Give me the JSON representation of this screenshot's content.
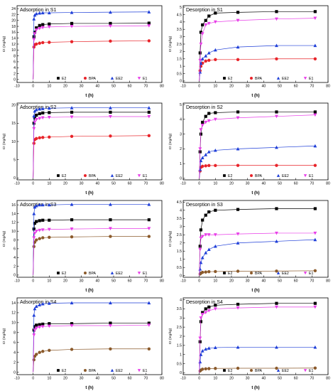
{
  "colors": {
    "E2": "#000000",
    "BPA_S1": "#e8242a",
    "BPA": "#8b5a2b",
    "EE2": "#1f3fd8",
    "E1": "#e83ee8"
  },
  "legend": [
    {
      "key": "E2",
      "label": "E2",
      "marker": "square"
    },
    {
      "key": "BPA",
      "label": "BPA",
      "marker": "circle"
    },
    {
      "key": "EE2",
      "label": "EE2",
      "marker": "triangle-up"
    },
    {
      "key": "E1",
      "label": "E1",
      "marker": "triangle-down"
    }
  ],
  "chart_data": [
    {
      "type": "scatter",
      "title": "Adsorption in S1",
      "xlabel": "t (h)",
      "ylabel": "Ct (mg/kg)",
      "xlim": [
        -10,
        80
      ],
      "ylim": [
        -1,
        25
      ],
      "xticks": [
        -10,
        0,
        10,
        20,
        30,
        40,
        50,
        60,
        70,
        80
      ],
      "yticks": [
        0,
        2,
        4,
        6,
        8,
        10,
        12,
        14,
        16,
        18,
        20,
        22,
        24
      ],
      "bpa_color": "#e8242a",
      "x": [
        0,
        0.5,
        1,
        2,
        4,
        6,
        10,
        24,
        48,
        72
      ],
      "series": [
        {
          "key": "E2",
          "values": [
            0,
            14.5,
            16.0,
            17.5,
            18.3,
            18.6,
            18.8,
            19.0,
            19.0,
            19.1
          ]
        },
        {
          "key": "BPA",
          "values": [
            0,
            11.0,
            11.8,
            12.0,
            12.3,
            12.5,
            12.6,
            12.8,
            13.0,
            13.1
          ]
        },
        {
          "key": "EE2",
          "values": [
            0,
            20.5,
            21.8,
            22.3,
            22.5,
            22.6,
            22.6,
            22.7,
            22.8,
            22.9
          ]
        },
        {
          "key": "E1",
          "values": [
            0,
            13.5,
            15.5,
            16.8,
            17.3,
            17.6,
            17.8,
            18.0,
            18.1,
            18.2
          ]
        }
      ]
    },
    {
      "type": "scatter",
      "title": "Desorption in S1",
      "xlabel": "t (h)",
      "ylabel": "Ct (mg/kg)",
      "xlim": [
        -10,
        80
      ],
      "ylim": [
        -0.1,
        5.1
      ],
      "xticks": [
        -10,
        0,
        10,
        20,
        30,
        40,
        50,
        60,
        70,
        80
      ],
      "yticks": [
        0,
        0.5,
        1,
        1.5,
        2,
        2.5,
        3,
        3.5,
        4,
        4.5,
        5
      ],
      "bpa_color": "#e8242a",
      "x": [
        0,
        0.5,
        1,
        2,
        4,
        6,
        10,
        24,
        48,
        72
      ],
      "series": [
        {
          "key": "E2",
          "values": [
            0,
            1.9,
            3.3,
            3.8,
            4.1,
            4.4,
            4.6,
            4.65,
            4.7,
            4.7
          ]
        },
        {
          "key": "BPA",
          "values": [
            0,
            0.7,
            1.0,
            1.2,
            1.35,
            1.4,
            1.45,
            1.45,
            1.5,
            1.5
          ]
        },
        {
          "key": "EE2",
          "values": [
            0,
            0.6,
            1.2,
            1.5,
            1.7,
            1.9,
            2.1,
            2.3,
            2.4,
            2.4
          ]
        },
        {
          "key": "E1",
          "values": [
            0,
            1.4,
            2.5,
            3.2,
            3.8,
            3.9,
            4.0,
            4.1,
            4.2,
            4.25
          ]
        }
      ]
    },
    {
      "type": "scatter",
      "title": "Adsorption in S2",
      "xlabel": "t (h)",
      "ylabel": "Ct (mg/kg)",
      "xlim": [
        -10,
        80
      ],
      "ylim": [
        -0.5,
        20.5
      ],
      "xticks": [
        -10,
        0,
        10,
        20,
        30,
        40,
        50,
        60,
        70,
        80
      ],
      "yticks": [
        0,
        5,
        10,
        15,
        20
      ],
      "bpa_color": "#e8242a",
      "x": [
        0,
        0.5,
        1,
        2,
        4,
        6,
        10,
        24,
        48,
        72
      ],
      "series": [
        {
          "key": "E2",
          "values": [
            0,
            15.0,
            16.5,
            17.2,
            17.6,
            17.8,
            17.9,
            18.0,
            18.0,
            18.0
          ]
        },
        {
          "key": "BPA",
          "values": [
            0,
            9.5,
            10.5,
            10.8,
            11.0,
            11.1,
            11.2,
            11.4,
            11.5,
            11.6
          ]
        },
        {
          "key": "EE2",
          "values": [
            0,
            17.0,
            18.3,
            18.7,
            18.9,
            19.0,
            19.1,
            19.2,
            19.2,
            19.2
          ]
        },
        {
          "key": "E1",
          "values": [
            0,
            13.5,
            15.3,
            16.0,
            16.3,
            16.5,
            16.6,
            16.7,
            16.8,
            16.8
          ]
        }
      ]
    },
    {
      "type": "scatter",
      "title": "Desorption in S2",
      "xlabel": "t (h)",
      "ylabel": "Ct (mg/kg)",
      "xlim": [
        -10,
        80
      ],
      "ylim": [
        -0.1,
        5.1
      ],
      "xticks": [
        -10,
        0,
        10,
        20,
        30,
        40,
        50,
        60,
        70,
        80
      ],
      "yticks": [
        0,
        1,
        2,
        3,
        4,
        5
      ],
      "bpa_color": "#e8242a",
      "x": [
        0,
        0.5,
        1,
        2,
        4,
        6,
        10,
        24,
        48,
        72
      ],
      "series": [
        {
          "key": "E2",
          "values": [
            0,
            1.8,
            3.0,
            3.8,
            4.2,
            4.4,
            4.45,
            4.5,
            4.5,
            4.5
          ]
        },
        {
          "key": "BPA",
          "values": [
            0,
            0.5,
            0.75,
            0.82,
            0.85,
            0.87,
            0.87,
            0.88,
            0.88,
            0.88
          ]
        },
        {
          "key": "EE2",
          "values": [
            0,
            0.6,
            1.2,
            1.4,
            1.6,
            1.8,
            1.9,
            2.0,
            2.1,
            2.2
          ]
        },
        {
          "key": "E1",
          "values": [
            0,
            2.0,
            3.3,
            3.6,
            3.8,
            3.9,
            4.0,
            4.1,
            4.2,
            4.3
          ]
        }
      ]
    },
    {
      "type": "scatter",
      "title": "Adsorption in S3",
      "xlabel": "t (h)",
      "ylabel": "Ct (mg/kg)",
      "xlim": [
        -10,
        80
      ],
      "ylim": [
        -0.5,
        17
      ],
      "xticks": [
        -10,
        0,
        10,
        20,
        30,
        40,
        50,
        60,
        70,
        80
      ],
      "yticks": [
        0,
        2,
        4,
        6,
        8,
        10,
        12,
        14,
        16
      ],
      "bpa_color": "#8b5a2b",
      "x": [
        0,
        0.5,
        1,
        2,
        4,
        6,
        10,
        24,
        48,
        72
      ],
      "series": [
        {
          "key": "E2",
          "values": [
            0,
            10.5,
            11.8,
            12.2,
            12.4,
            12.5,
            12.5,
            12.6,
            12.6,
            12.6
          ]
        },
        {
          "key": "BPA",
          "values": [
            0,
            6.5,
            7.5,
            8.0,
            8.3,
            8.5,
            8.6,
            8.7,
            8.8,
            8.8
          ]
        },
        {
          "key": "EE2",
          "values": [
            0,
            14.0,
            15.5,
            15.8,
            16.0,
            16.0,
            16.0,
            16.1,
            16.1,
            16.1
          ]
        },
        {
          "key": "E1",
          "values": [
            0,
            8.5,
            9.5,
            10.0,
            10.2,
            10.3,
            10.4,
            10.5,
            10.6,
            10.6
          ]
        }
      ]
    },
    {
      "type": "scatter",
      "title": "Desorption in S3",
      "xlabel": "t (h)",
      "ylabel": "Ct (mg/kg)",
      "xlim": [
        -10,
        80
      ],
      "ylim": [
        -0.1,
        4.6
      ],
      "xticks": [
        -10,
        0,
        10,
        20,
        30,
        40,
        50,
        60,
        70,
        80
      ],
      "yticks": [
        0,
        0.5,
        1,
        1.5,
        2,
        2.5,
        3,
        3.5,
        4,
        4.5
      ],
      "bpa_color": "#8b5a2b",
      "x": [
        0,
        0.5,
        1,
        2,
        4,
        6,
        10,
        24,
        48,
        72
      ],
      "series": [
        {
          "key": "E2",
          "values": [
            0,
            1.8,
            2.8,
            3.4,
            3.7,
            3.9,
            4.0,
            4.05,
            4.1,
            4.1
          ]
        },
        {
          "key": "BPA",
          "values": [
            0,
            0.1,
            0.15,
            0.2,
            0.22,
            0.24,
            0.25,
            0.27,
            0.28,
            0.3
          ]
        },
        {
          "key": "EE2",
          "values": [
            0,
            0.4,
            0.8,
            1.1,
            1.4,
            1.6,
            1.8,
            2.0,
            2.1,
            2.2
          ]
        },
        {
          "key": "E1",
          "values": [
            0,
            1.6,
            2.3,
            2.4,
            2.5,
            2.5,
            2.5,
            2.55,
            2.6,
            2.6
          ]
        }
      ]
    },
    {
      "type": "scatter",
      "title": "Adsorption in S4",
      "xlabel": "t (h)",
      "ylabel": "Ct (mg/kg)",
      "xlim": [
        -10,
        80
      ],
      "ylim": [
        -0.5,
        15
      ],
      "xticks": [
        -10,
        0,
        10,
        20,
        30,
        40,
        50,
        60,
        70,
        80
      ],
      "yticks": [
        0,
        2,
        4,
        6,
        8,
        10,
        12,
        14
      ],
      "bpa_color": "#8b5a2b",
      "x": [
        0,
        0.5,
        1,
        2,
        4,
        6,
        10,
        24,
        48,
        72
      ],
      "series": [
        {
          "key": "E2",
          "values": [
            0,
            8.5,
            9.2,
            9.5,
            9.6,
            9.7,
            9.8,
            9.8,
            9.9,
            9.9
          ]
        },
        {
          "key": "BPA",
          "values": [
            0,
            2.5,
            3.2,
            3.6,
            4.0,
            4.2,
            4.4,
            4.6,
            4.7,
            4.7
          ]
        },
        {
          "key": "EE2",
          "values": [
            0,
            11.5,
            12.8,
            13.3,
            13.6,
            13.8,
            13.9,
            14.0,
            14.0,
            14.0
          ]
        },
        {
          "key": "E1",
          "values": [
            0,
            7.5,
            8.5,
            8.9,
            9.1,
            9.2,
            9.3,
            9.4,
            9.4,
            9.5
          ]
        }
      ]
    },
    {
      "type": "scatter",
      "title": "Desorption in S4",
      "xlabel": "t (h)",
      "ylabel": "Ct (mg/kg)",
      "xlim": [
        -10,
        80
      ],
      "ylim": [
        -0.1,
        4.1
      ],
      "xticks": [
        -10,
        0,
        10,
        20,
        30,
        40,
        50,
        60,
        70,
        80
      ],
      "yticks": [
        0,
        0.5,
        1,
        1.5,
        2,
        2.5,
        3,
        3.5,
        4
      ],
      "bpa_color": "#8b5a2b",
      "x": [
        0,
        0.5,
        1,
        2,
        4,
        6,
        10,
        24,
        48,
        72
      ],
      "series": [
        {
          "key": "E2",
          "values": [
            0,
            1.7,
            2.8,
            3.3,
            3.5,
            3.6,
            3.7,
            3.75,
            3.8,
            3.8
          ]
        },
        {
          "key": "BPA",
          "values": [
            0,
            0.1,
            0.15,
            0.2,
            0.22,
            0.23,
            0.24,
            0.25,
            0.25,
            0.26
          ]
        },
        {
          "key": "EE2",
          "values": [
            0,
            0.6,
            1.0,
            1.2,
            1.3,
            1.35,
            1.38,
            1.4,
            1.4,
            1.4
          ]
        },
        {
          "key": "E1",
          "values": [
            0,
            1.9,
            3.0,
            3.2,
            3.3,
            3.4,
            3.5,
            3.55,
            3.6,
            3.6
          ]
        }
      ]
    }
  ]
}
